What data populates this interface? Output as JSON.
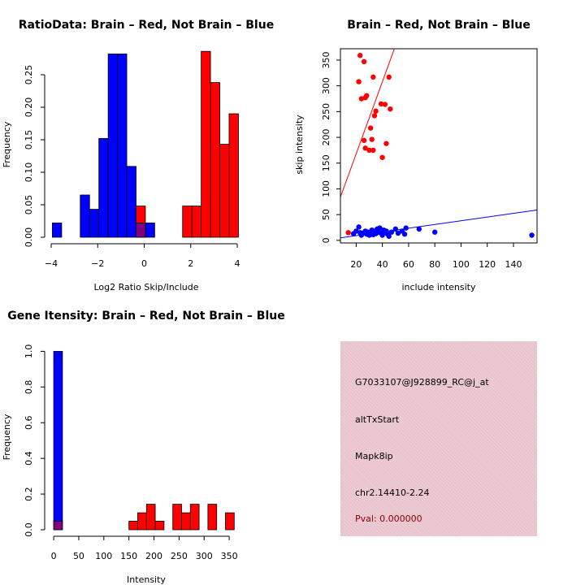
{
  "colors": {
    "red": "#ff0000",
    "blue": "#0000ff",
    "overlap": "#800080",
    "panel": "#e9c4cd",
    "pval": "#8b0000"
  },
  "chart_data": [
    {
      "type": "bar",
      "title": "RatioData: Brain – Red, Not Brain – Blue",
      "xlabel": "Log2 Ratio Skip/Include",
      "ylabel": "Frequency",
      "xlim": [
        -4,
        4
      ],
      "ylim": [
        0,
        0.29
      ],
      "xticks": [
        -4,
        -2,
        0,
        2,
        4
      ],
      "xtick_labels": [
        "−4",
        "−2",
        "0",
        "2",
        "4"
      ],
      "yticks": [
        0,
        0.05,
        0.1,
        0.15,
        0.2,
        0.25
      ],
      "ytick_labels": [
        "0.00",
        "0.05",
        "0.10",
        "0.15",
        "0.20",
        "0.25"
      ],
      "bin_width": 0.4,
      "series": [
        {
          "name": "Not Brain",
          "color": "blue",
          "bins": [
            [
              -3.95,
              0.022
            ],
            [
              -2.75,
              0.065
            ],
            [
              -2.35,
              0.043
            ],
            [
              -1.95,
              0.152
            ],
            [
              -1.55,
              0.282
            ],
            [
              -1.15,
              0.282
            ],
            [
              -0.75,
              0.109
            ],
            [
              -0.35,
              0.022
            ],
            [
              0.05,
              0.022
            ]
          ]
        },
        {
          "name": "Brain",
          "color": "red",
          "bins": [
            [
              -0.35,
              0.048
            ],
            [
              1.65,
              0.048
            ],
            [
              2.05,
              0.048
            ],
            [
              2.45,
              0.286
            ],
            [
              2.85,
              0.238
            ],
            [
              3.25,
              0.143
            ],
            [
              3.65,
              0.19
            ]
          ]
        }
      ]
    },
    {
      "type": "scatter",
      "title": "Brain – Red, Not Brain – Blue",
      "xlabel": "include intensity",
      "ylabel": "skip intensity",
      "xlim": [
        8,
        158
      ],
      "ylim": [
        -5,
        372
      ],
      "xticks": [
        20,
        40,
        60,
        80,
        100,
        120,
        140
      ],
      "yticks": [
        0,
        50,
        100,
        150,
        200,
        250,
        300,
        350
      ],
      "series": [
        {
          "name": "Brain",
          "color": "red",
          "points": [
            [
              14,
              15
            ],
            [
              22,
              308
            ],
            [
              23,
              359
            ],
            [
              24,
              275
            ],
            [
              26,
              347
            ],
            [
              26,
              194
            ],
            [
              27,
              277
            ],
            [
              27,
              179
            ],
            [
              28,
              281
            ],
            [
              30,
              175
            ],
            [
              31,
              218
            ],
            [
              32,
              196
            ],
            [
              33,
              175
            ],
            [
              33,
              317
            ],
            [
              34,
              242
            ],
            [
              35,
              251
            ],
            [
              39,
              265
            ],
            [
              40,
              161
            ],
            [
              42,
              264
            ],
            [
              43,
              188
            ],
            [
              45,
              317
            ],
            [
              46,
              255
            ]
          ]
        },
        {
          "name": "Not Brain",
          "color": "blue",
          "points": [
            [
              18,
              13
            ],
            [
              20,
              18
            ],
            [
              22,
              26
            ],
            [
              23,
              15
            ],
            [
              24,
              10
            ],
            [
              25,
              14
            ],
            [
              27,
              18
            ],
            [
              28,
              12
            ],
            [
              29,
              16
            ],
            [
              30,
              10
            ],
            [
              31,
              14
            ],
            [
              32,
              20
            ],
            [
              33,
              11
            ],
            [
              34,
              18
            ],
            [
              35,
              13
            ],
            [
              36,
              22
            ],
            [
              37,
              16
            ],
            [
              38,
              24
            ],
            [
              39,
              14
            ],
            [
              40,
              10
            ],
            [
              41,
              20
            ],
            [
              42,
              15
            ],
            [
              43,
              18
            ],
            [
              44,
              12
            ],
            [
              45,
              8
            ],
            [
              47,
              16
            ],
            [
              50,
              22
            ],
            [
              52,
              14
            ],
            [
              55,
              18
            ],
            [
              57,
              12
            ],
            [
              58,
              24
            ],
            [
              68,
              22
            ],
            [
              80,
              16
            ],
            [
              154,
              10
            ]
          ]
        }
      ],
      "fit_lines": [
        {
          "color": "red",
          "intercept": 28,
          "slope": 7.0
        },
        {
          "color": "blue",
          "intercept": 2,
          "slope": 0.36
        }
      ]
    },
    {
      "type": "bar",
      "title": "Gene Itensity: Brain – Red, Not Brain – Blue",
      "xlabel": "Intensity",
      "ylabel": "Frequency",
      "xlim": [
        -5,
        366
      ],
      "ylim": [
        0,
        1.02
      ],
      "xticks": [
        0,
        50,
        100,
        150,
        200,
        250,
        300,
        350
      ],
      "yticks": [
        0,
        0.2,
        0.4,
        0.6,
        0.8,
        1.0
      ],
      "ytick_labels": [
        "0.0",
        "0.2",
        "0.4",
        "0.6",
        "0.8",
        "1.0"
      ],
      "bin_width": 17.5,
      "series": [
        {
          "name": "Not Brain",
          "color": "blue",
          "bins": [
            [
              0,
              1.0
            ]
          ]
        },
        {
          "name": "Brain",
          "color": "red",
          "bins": [
            [
              0,
              0.048
            ],
            [
              150,
              0.048
            ],
            [
              167.5,
              0.095
            ],
            [
              185,
              0.143
            ],
            [
              202.5,
              0.048
            ],
            [
              237.5,
              0.143
            ],
            [
              255,
              0.095
            ],
            [
              272.5,
              0.143
            ],
            [
              307.5,
              0.143
            ],
            [
              342.5,
              0.095
            ]
          ]
        }
      ]
    }
  ],
  "info": {
    "probe": "G7033107@J928899_RC@j_at",
    "event_type": "altTxStart",
    "gene": "Mapk8ip",
    "location": "chr2.14410-2.24",
    "pval": "Pval: 0.000000"
  }
}
